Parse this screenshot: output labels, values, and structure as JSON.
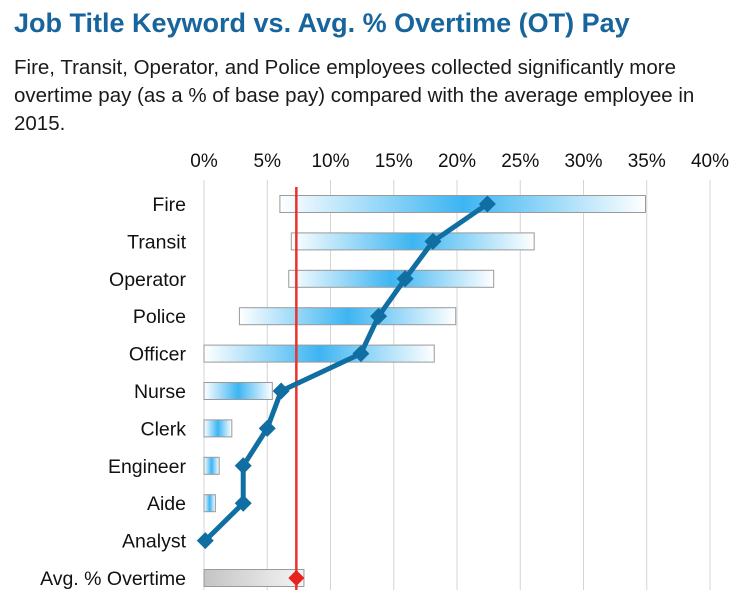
{
  "chart_data": {
    "type": "bar",
    "title": "Job Title Keyword vs. Avg. % Overtime (OT) Pay",
    "subtitle": "Fire, Transit, Operator, and Police employees collected significantly more overtime pay (as a % of base pay) compared with the average employee in 2015.",
    "x_ticks": [
      "0%",
      "5%",
      "10%",
      "15%",
      "20%",
      "25%",
      "30%",
      "35%",
      "40%"
    ],
    "xlim": [
      0,
      40
    ],
    "grid": true,
    "categories": [
      "Fire",
      "Transit",
      "Operator",
      "Police",
      "Officer",
      "Nurse",
      "Clerk",
      "Engineer",
      "Aide",
      "Analyst",
      "Avg. % Overtime"
    ],
    "series": [
      {
        "type": "range-bar",
        "low": [
          6.0,
          6.9,
          6.7,
          2.8,
          0.0,
          0.0,
          0.0,
          0.0,
          0.0,
          0.0,
          0.0
        ],
        "high": [
          34.9,
          26.1,
          22.9,
          19.9,
          18.2,
          5.4,
          2.2,
          1.2,
          0.9,
          0.0,
          7.9
        ]
      },
      {
        "type": "line",
        "values": [
          22.4,
          18.1,
          15.9,
          13.8,
          12.4,
          6.1,
          5.0,
          3.1,
          3.1,
          0.1,
          7.3
        ]
      }
    ],
    "reference_line": {
      "value": 7.3
    },
    "colors": {
      "bar_fill": "#3db5f2",
      "bar_outline": "#9a9a9a",
      "avg_bar_fill": "#c4c4c4",
      "line": "#106ea2",
      "reference_line": "#e8322b",
      "avg_marker": "#e8231f",
      "grid": "#d4d4d4",
      "title": "#17659c"
    }
  }
}
